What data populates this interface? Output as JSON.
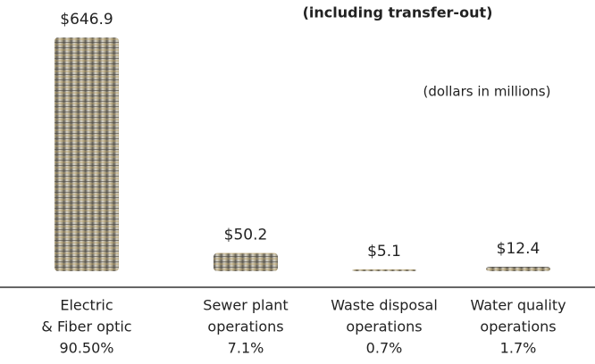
{
  "chart_data": {
    "type": "bar",
    "title": "(including transfer-out)",
    "subtitle": "(dollars in millions)",
    "categories": [
      [
        "Electric",
        "& Fiber optic"
      ],
      [
        "Sewer plant",
        "operations"
      ],
      [
        "Waste disposal",
        "operations"
      ],
      [
        "Water quality",
        "operations"
      ]
    ],
    "values": [
      646.9,
      50.2,
      5.1,
      12.4
    ],
    "value_labels": [
      "$646.9",
      "$50.2",
      "$5.1",
      "$12.4"
    ],
    "shares": [
      90.5,
      7.1,
      0.7,
      1.7
    ],
    "share_labels": [
      "90.50%",
      "7.1%",
      "0.7%",
      "1.7%"
    ]
  }
}
